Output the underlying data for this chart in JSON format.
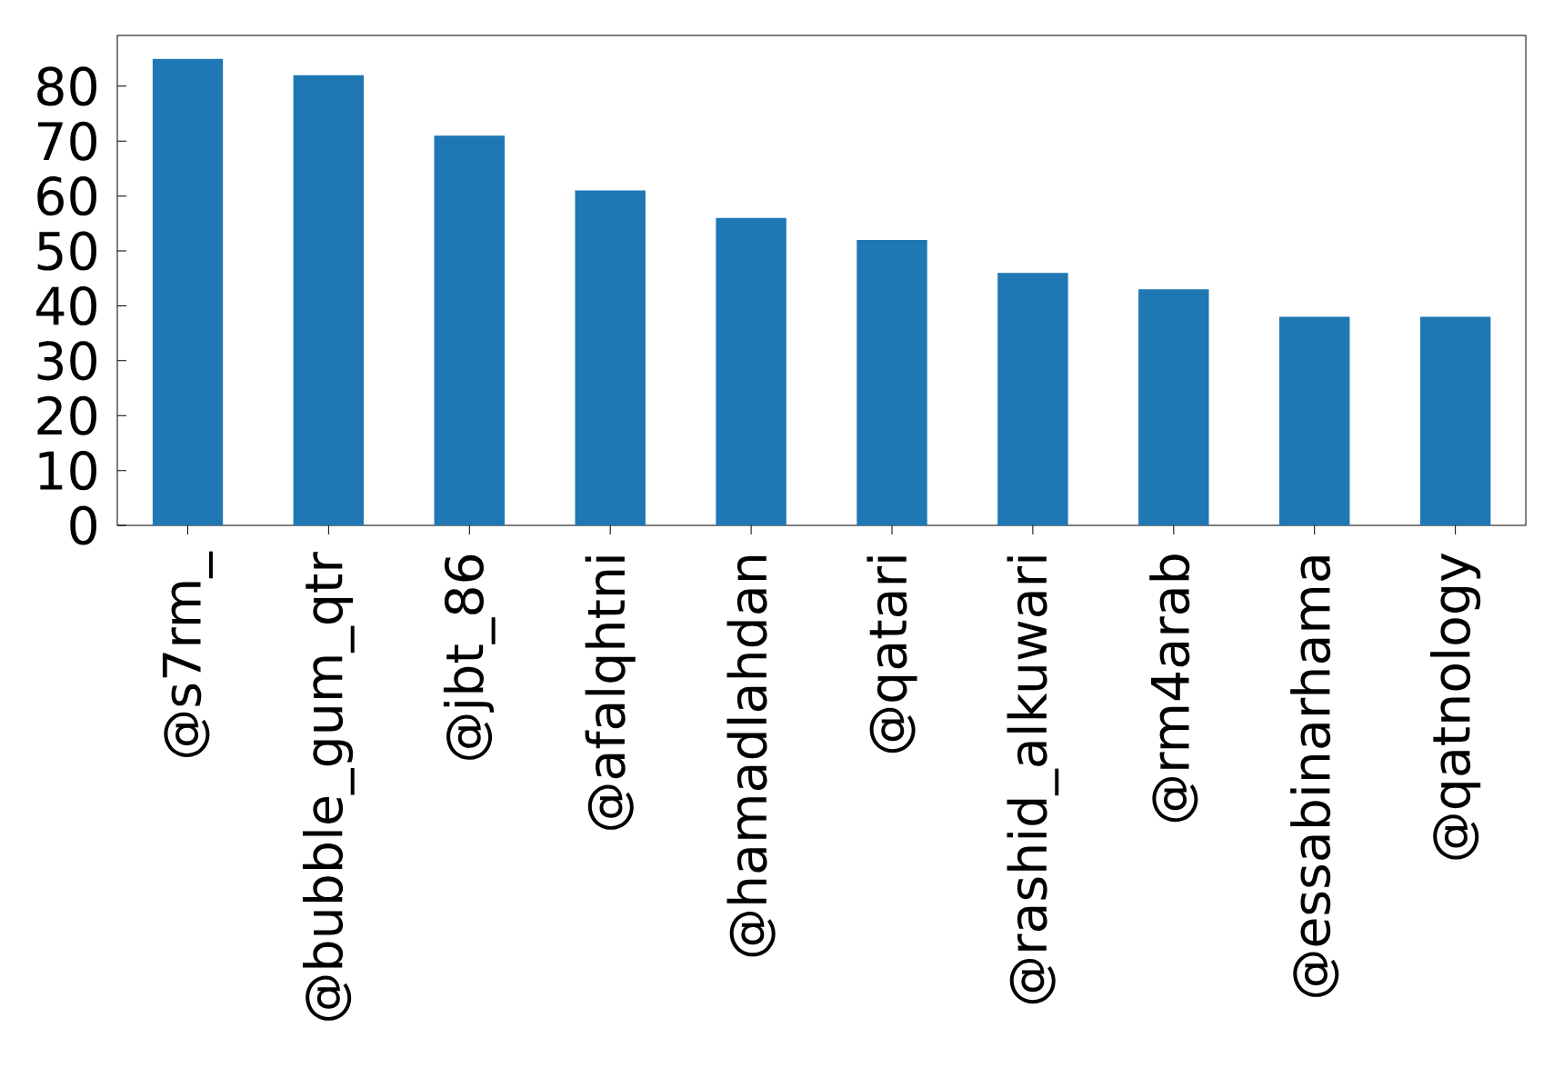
{
  "chart_data": {
    "type": "bar",
    "categories": [
      "@s7rm_",
      "@bubble_gum_qtr",
      "@jbt_86",
      "@afalqhtni",
      "@hamadlahdan",
      "@qatari",
      "@rashid_alkuwari",
      "@rm4arab",
      "@essabinarhama",
      "@qatnology"
    ],
    "values": [
      85,
      82,
      71,
      61,
      56,
      52,
      46,
      43,
      38,
      38
    ],
    "color": "#1f77b4",
    "ylim": [
      0,
      89.25
    ],
    "yticks": [
      0,
      10,
      20,
      30,
      40,
      50,
      60,
      70,
      80
    ]
  }
}
